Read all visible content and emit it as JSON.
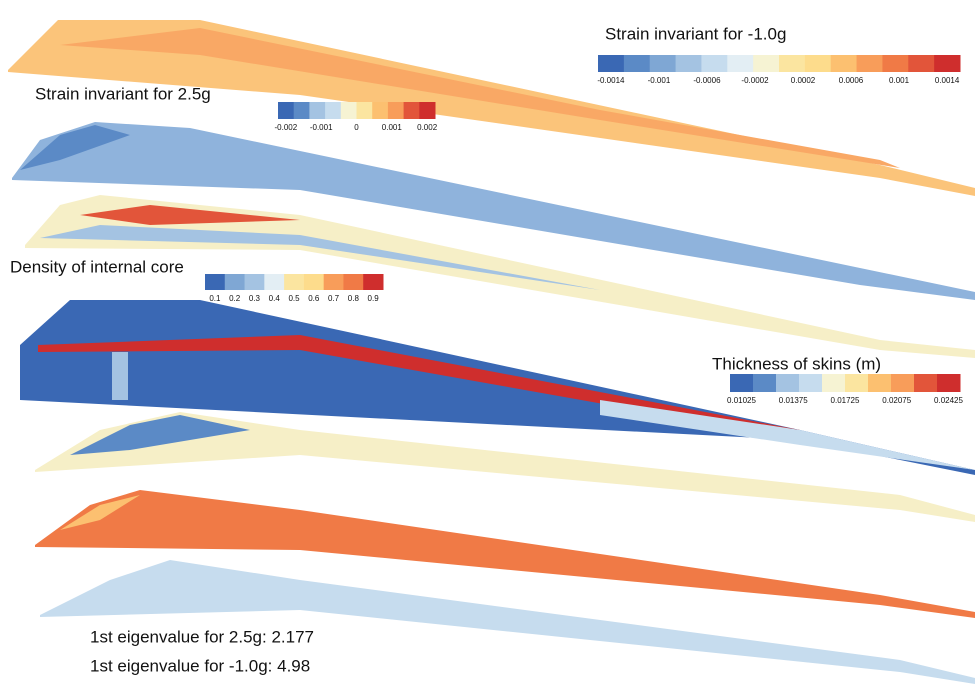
{
  "legends": [
    {
      "title": "Strain invariant for -1.0g",
      "ticks": [
        "-0.0014",
        "-0.001",
        "-0.0006",
        "-0.0002",
        "0.0002",
        "0.0006",
        "0.001",
        "0.0014"
      ]
    },
    {
      "title": "Strain invariant for 2.5g",
      "ticks": [
        "-0.002",
        "-0.001",
        "0",
        "0.001",
        "0.002"
      ]
    },
    {
      "title": "Density of internal core",
      "ticks": [
        "0.1",
        "0.2",
        "0.3",
        "0.4",
        "0.5",
        "0.6",
        "0.7",
        "0.8",
        "0.9"
      ]
    },
    {
      "title": "Thickness of skins (m)",
      "ticks": [
        "0.01025",
        "0.01375",
        "0.01725",
        "0.02075",
        "0.02425"
      ]
    }
  ],
  "eigenvalues": [
    "1st eigenvalue for 2.5g: 2.177",
    "1st eigenvalue for -1.0g: 4.98"
  ]
}
